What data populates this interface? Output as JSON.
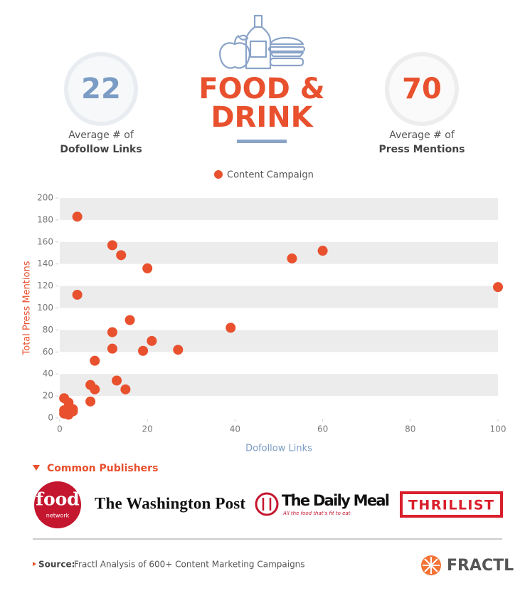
{
  "header": {
    "title_lines": [
      "FOOD &",
      "DRINK"
    ]
  },
  "stats": [
    {
      "value": 22,
      "label_lines": [
        "Average # of",
        "Dofollow Links"
      ]
    },
    {
      "value": 70,
      "label_lines": [
        "Average # of",
        "Press Mentions"
      ]
    }
  ],
  "chart_data": {
    "type": "scatter",
    "xlabel": "Dofollow Links",
    "ylabel": "Total Press Mentions",
    "xlim": [
      0,
      100
    ],
    "xticks": [
      0,
      20,
      40,
      60,
      80,
      100
    ],
    "ylim": [
      0,
      200
    ],
    "yticks": [
      0,
      20,
      40,
      60,
      80,
      100,
      120,
      140,
      160,
      180,
      200
    ],
    "grid": true,
    "legend": "top",
    "series": [
      {
        "name": "Content Campaign",
        "color": "#e8502e",
        "x": [
          4,
          12,
          14,
          20,
          4,
          53,
          60,
          100,
          39,
          16,
          12,
          12,
          21,
          19,
          27,
          8,
          13,
          7,
          8,
          15,
          7,
          1,
          2,
          1,
          2,
          3,
          2,
          1,
          3
        ],
        "y": [
          183,
          157,
          148,
          136,
          112,
          145,
          152,
          119,
          82,
          89,
          78,
          63,
          70,
          61,
          62,
          52,
          34,
          30,
          26,
          26,
          15,
          18,
          14,
          7,
          5,
          8,
          3,
          4,
          6
        ]
      }
    ]
  },
  "publishers": {
    "heading": "Common Publishers",
    "food": "food",
    "network": "network",
    "washington_post": "The Washington Post",
    "daily_meal": "The Daily Meal",
    "daily_meal_tagline": "All the food that's fit to eat",
    "thrillist": "THRILLIST"
  },
  "footer": {
    "source_label": "Source:",
    "source_text": "Fractl Analysis of 600+ Content Marketing Campaigns",
    "brand": "FRACTL"
  }
}
